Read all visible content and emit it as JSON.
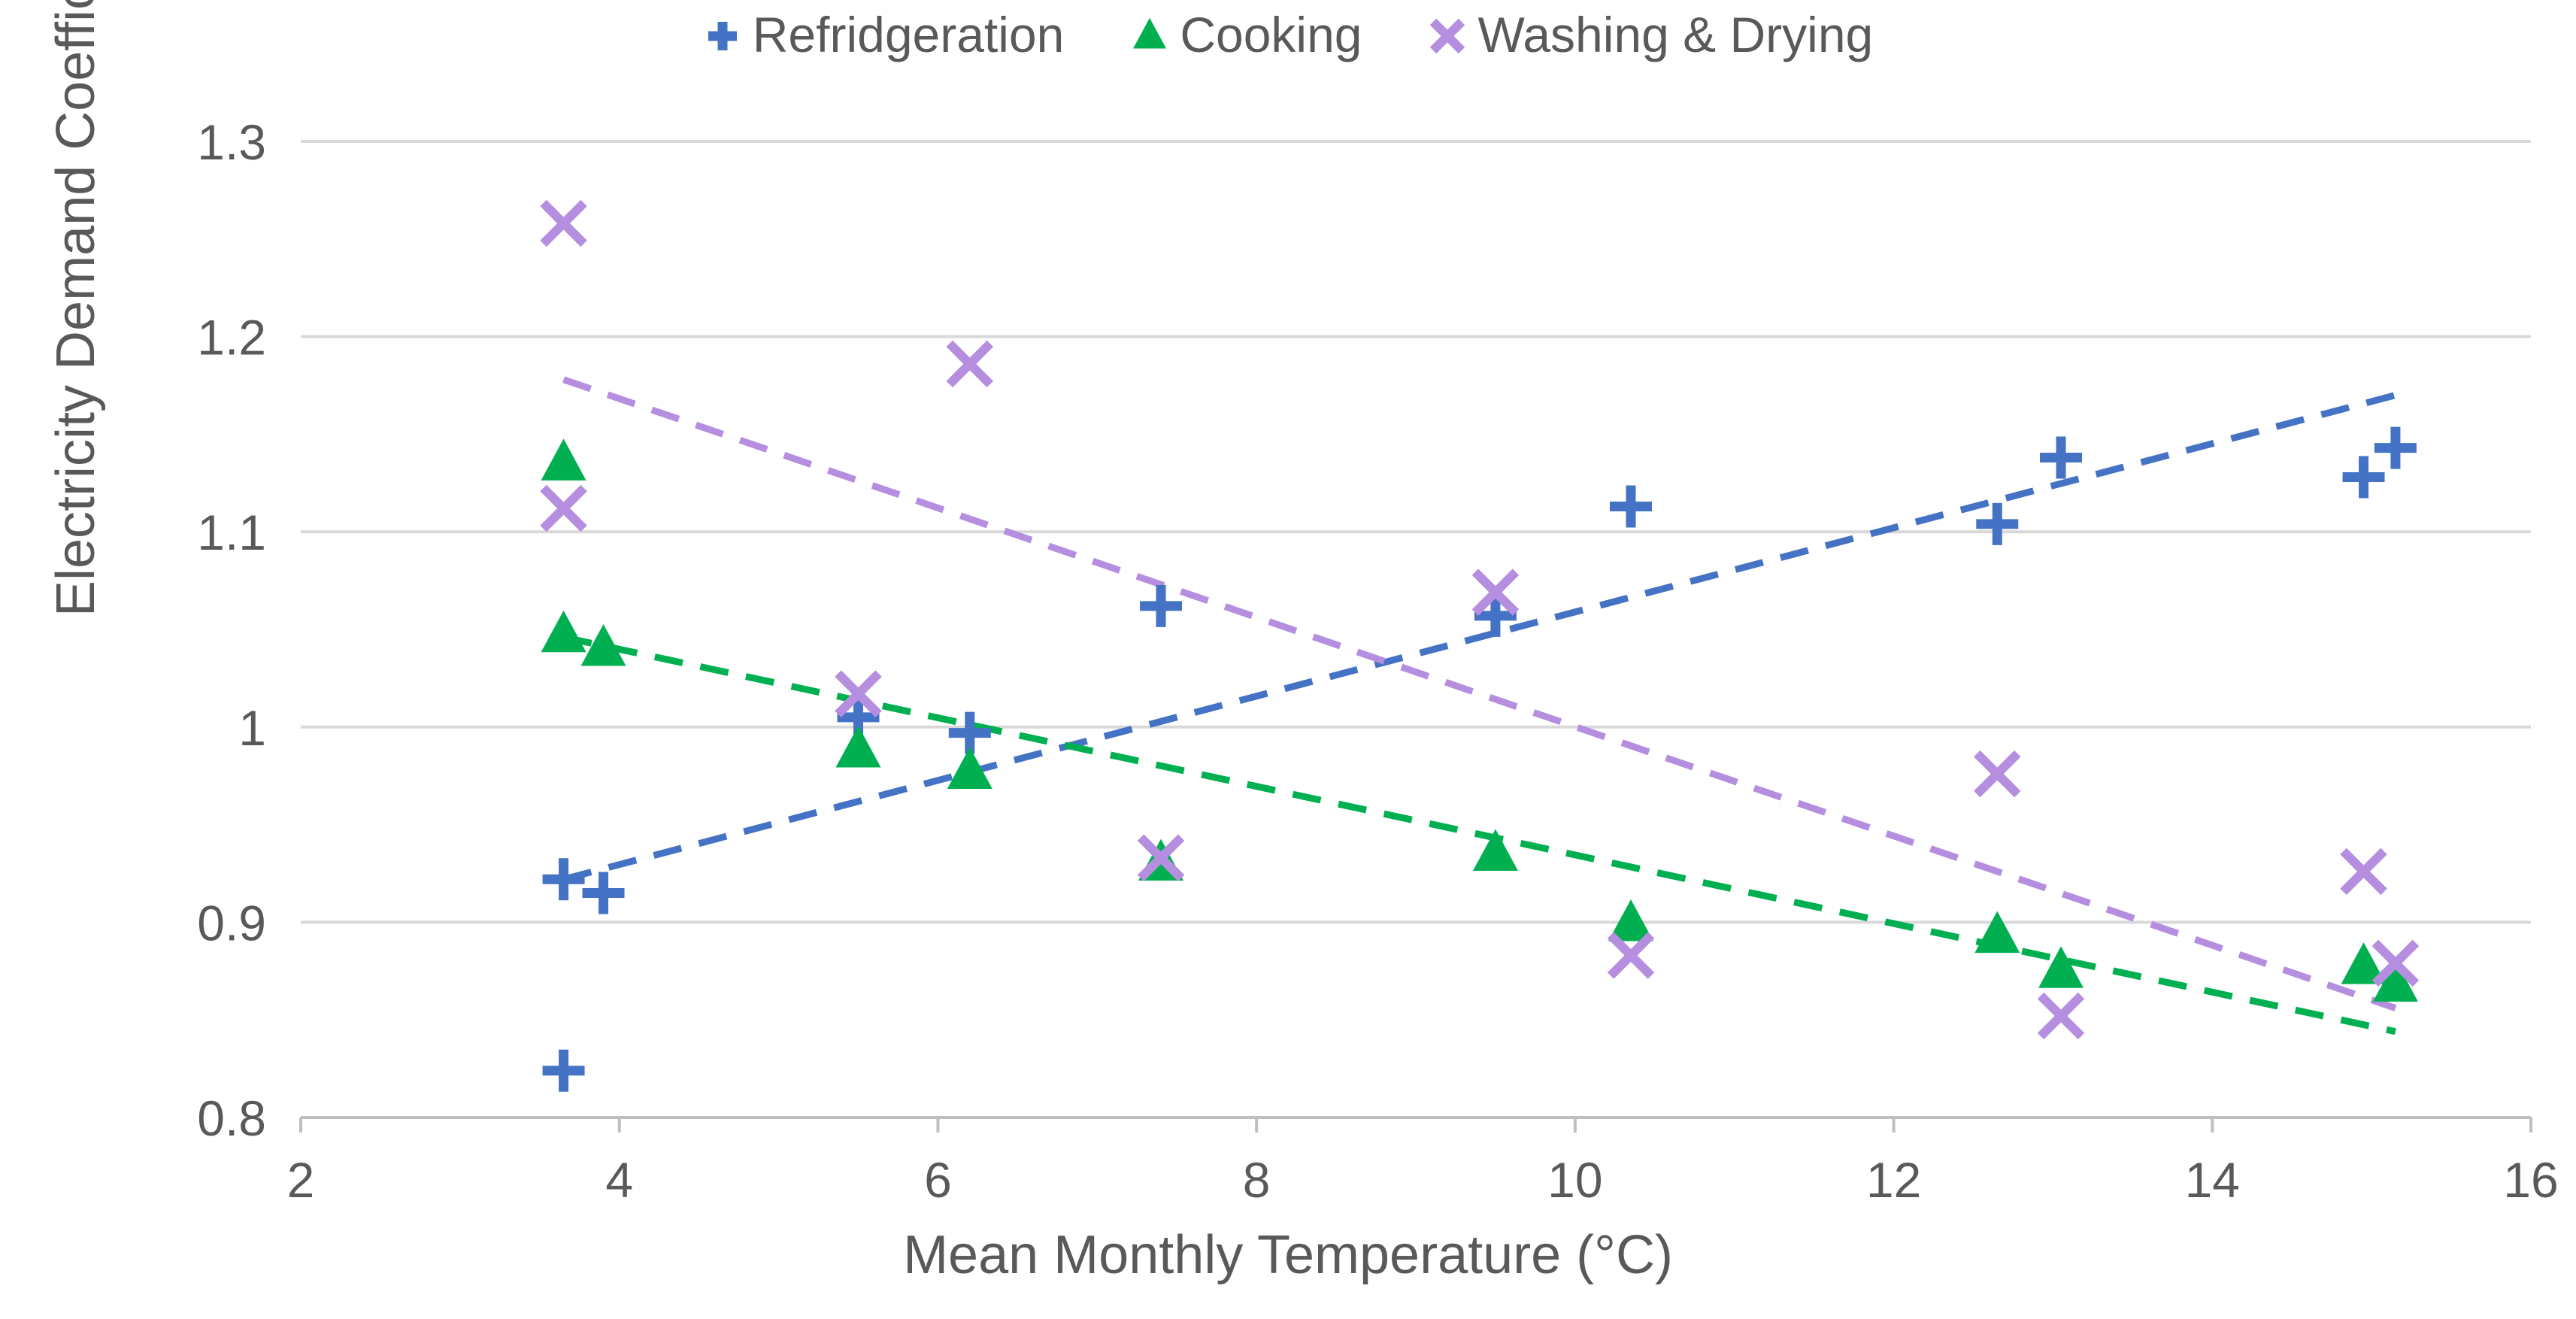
{
  "chart_data": {
    "type": "scatter",
    "title": "",
    "xlabel": "Mean Monthly Temperature (°C)",
    "ylabel": "Electricity Demand Coefficient (-)",
    "xlim": [
      2,
      16
    ],
    "ylim": [
      0.8,
      1.3
    ],
    "xticks": [
      "2",
      "4",
      "6",
      "8",
      "10",
      "12",
      "14",
      "16"
    ],
    "yticks": [
      "0.8",
      "0.9",
      "1",
      "1.1",
      "1.2",
      "1.3"
    ],
    "grid": "horizontal",
    "legend_position": "top",
    "series": [
      {
        "name": "Refridgeration",
        "marker": "plus",
        "color": "#4472C4",
        "points": [
          [
            3.65,
            0.922
          ],
          [
            3.65,
            0.824
          ],
          [
            3.9,
            0.915
          ],
          [
            5.5,
            1.005
          ],
          [
            6.2,
            0.997
          ],
          [
            7.4,
            1.062
          ],
          [
            9.5,
            1.057
          ],
          [
            10.35,
            1.113
          ],
          [
            12.65,
            1.104
          ],
          [
            13.05,
            1.138
          ],
          [
            14.95,
            1.128
          ],
          [
            15.15,
            1.143
          ]
        ],
        "trendline": [
          [
            3.65,
            0.922
          ],
          [
            15.15,
            1.17
          ]
        ]
      },
      {
        "name": "Cooking",
        "marker": "triangle",
        "color": "#00B050",
        "points": [
          [
            3.65,
            1.135
          ],
          [
            3.65,
            1.047
          ],
          [
            3.9,
            1.04
          ],
          [
            5.5,
            0.988
          ],
          [
            6.2,
            0.977
          ],
          [
            7.4,
            0.93
          ],
          [
            9.5,
            0.935
          ],
          [
            10.35,
            0.899
          ],
          [
            12.65,
            0.893
          ],
          [
            13.05,
            0.875
          ],
          [
            14.95,
            0.877
          ],
          [
            15.15,
            0.868
          ]
        ],
        "trendline": [
          [
            3.65,
            1.046
          ],
          [
            15.15,
            0.844
          ]
        ]
      },
      {
        "name": "Washing & Drying",
        "marker": "cross",
        "color": "#B58EE0",
        "points": [
          [
            3.65,
            1.258
          ],
          [
            3.65,
            1.112
          ],
          [
            5.5,
            1.017
          ],
          [
            6.2,
            1.186
          ],
          [
            7.4,
            0.933
          ],
          [
            9.5,
            1.069
          ],
          [
            10.35,
            0.883
          ],
          [
            12.65,
            0.976
          ],
          [
            13.05,
            0.852
          ],
          [
            14.95,
            0.926
          ],
          [
            15.15,
            0.879
          ]
        ],
        "trendline": [
          [
            3.65,
            1.178
          ],
          [
            15.15,
            0.856
          ]
        ]
      }
    ]
  }
}
